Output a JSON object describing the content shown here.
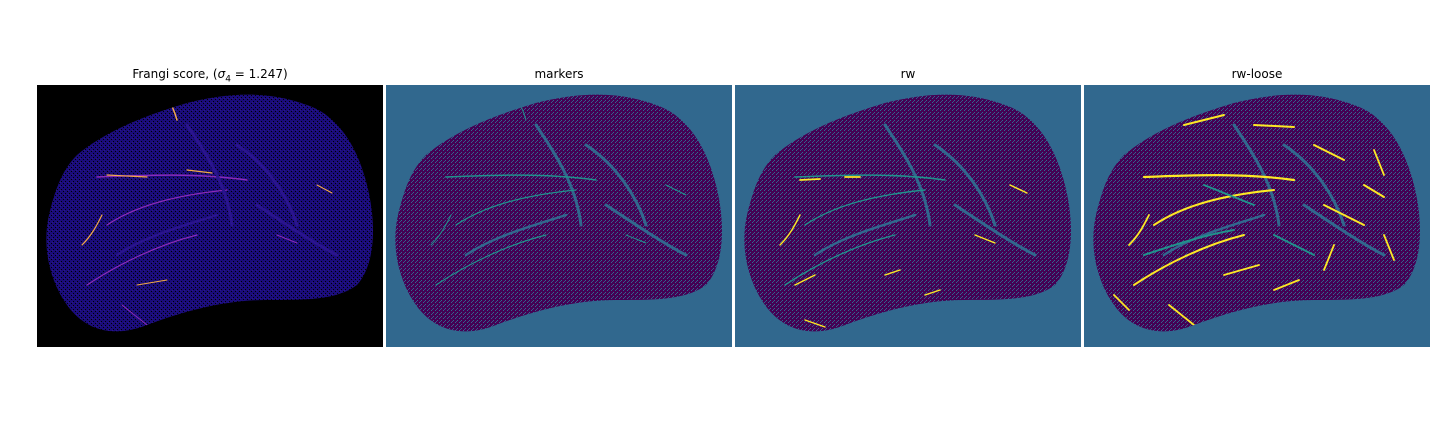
{
  "colors": {
    "frangi_background": "#000000",
    "frangi_tissue": "#1a0c7a",
    "frangi_vessel_mid": "#8a2bb8",
    "frangi_vessel_high": "#f2a84a",
    "label_background": "#31688e",
    "label_tissue": "#440154",
    "label_marker": "#21918c",
    "label_vessel": "#fde725"
  },
  "panels": [
    {
      "title_prefix": "Frangi score, (",
      "title_math": "σ",
      "title_sub": "4",
      "title_suffix": " = 1.247)",
      "colormap": "magma-like"
    },
    {
      "title": "markers",
      "colormap": "viridis"
    },
    {
      "title": "rw",
      "colormap": "viridis"
    },
    {
      "title": "rw-loose",
      "colormap": "viridis"
    }
  ]
}
